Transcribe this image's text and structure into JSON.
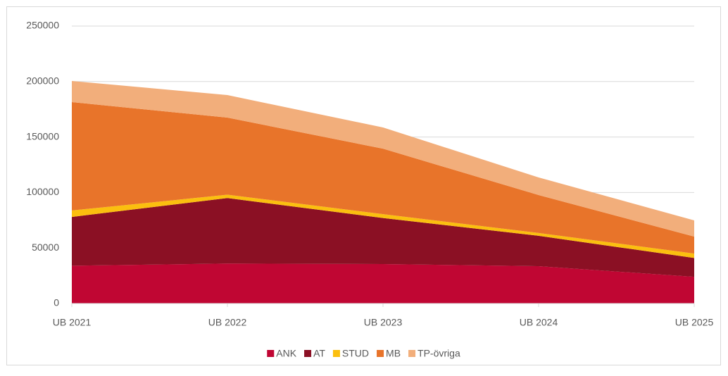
{
  "chart_data": {
    "type": "stacked-area",
    "categories": [
      "UB 2021",
      "UB 2022",
      "UB 2023",
      "UB 2024",
      "UB 2025"
    ],
    "series": [
      {
        "name": "ANK",
        "color": "#c00633",
        "values": [
          34000,
          36000,
          35500,
          33600,
          24000
        ]
      },
      {
        "name": "AT",
        "color": "#8b1024",
        "values": [
          44000,
          59000,
          41500,
          27400,
          17000
        ]
      },
      {
        "name": "STUD",
        "color": "#fbbf0f",
        "values": [
          5800,
          3000,
          3500,
          2500,
          4000
        ]
      },
      {
        "name": "MB",
        "color": "#e8742a",
        "values": [
          97700,
          69500,
          59000,
          34200,
          15300
        ]
      },
      {
        "name": "TP-övriga",
        "color": "#f2ae7b",
        "values": [
          19000,
          20300,
          19100,
          15900,
          14600
        ]
      }
    ],
    "ylim": [
      0,
      250000
    ],
    "yticks": [
      0,
      50000,
      100000,
      150000,
      200000,
      250000
    ],
    "grid": true,
    "legend": "bottom"
  }
}
